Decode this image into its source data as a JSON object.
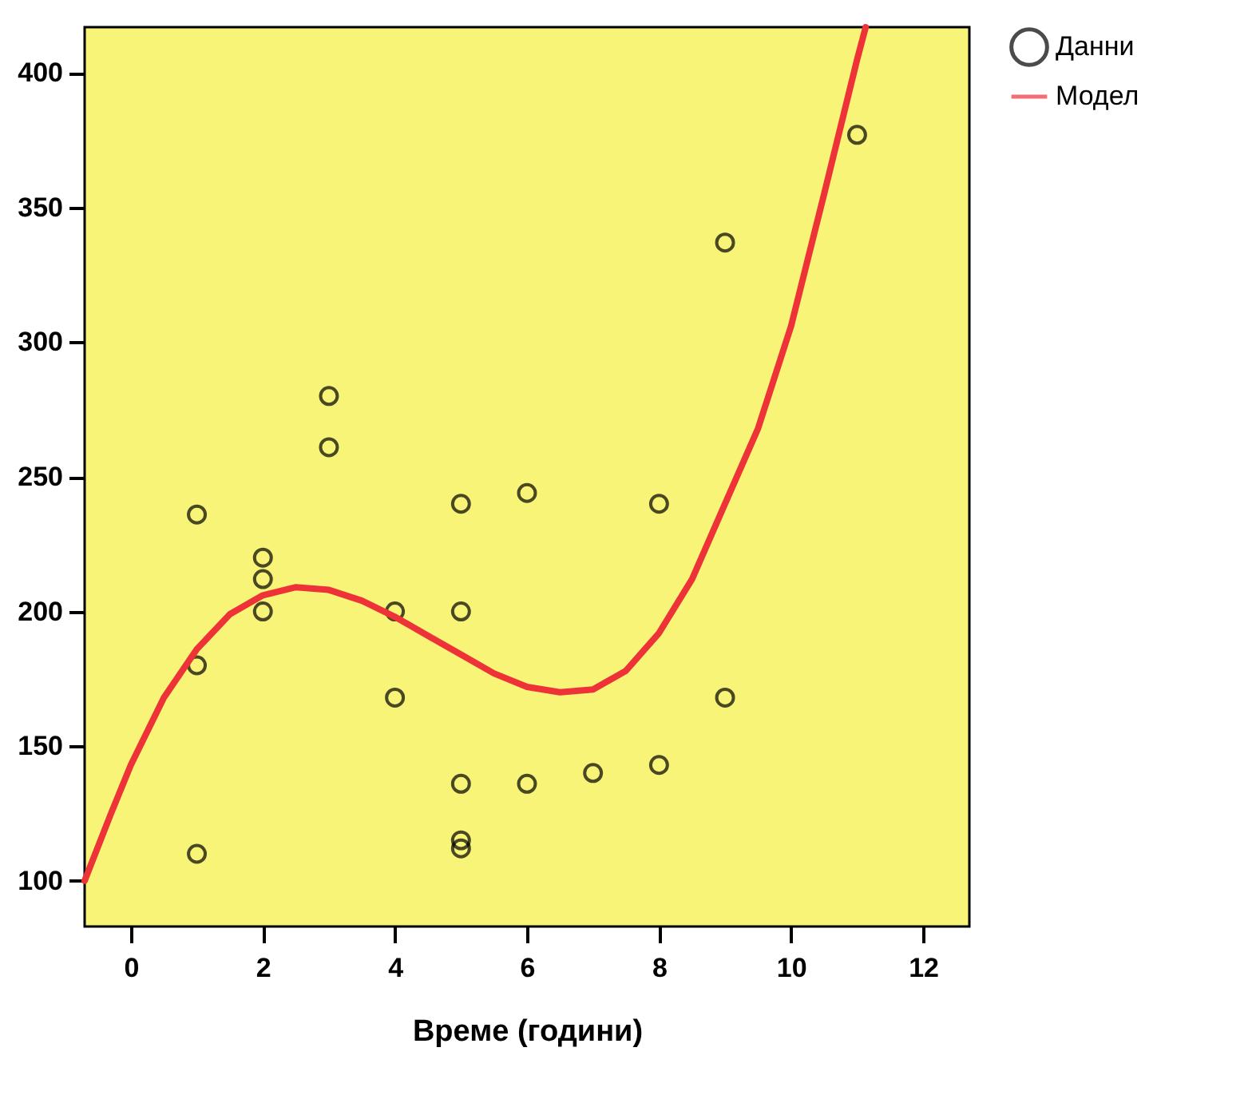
{
  "chart_data": {
    "type": "scatter",
    "xlabel": "Време (години)",
    "xlim": [
      -0.7,
      12.7
    ],
    "ylim": [
      83,
      417
    ],
    "xticks": [
      0,
      2,
      4,
      6,
      8,
      10,
      12
    ],
    "yticks": [
      100,
      150,
      200,
      250,
      300,
      350,
      400
    ],
    "grid": false,
    "legend": "top right",
    "series": [
      {
        "name": "Данни",
        "marker": "circle",
        "color": "#000000",
        "x": [
          1,
          1,
          1,
          2,
          2,
          2,
          3,
          3,
          4,
          4,
          5,
          5,
          5,
          5,
          5,
          6,
          6,
          7,
          8,
          8,
          9,
          9,
          11
        ],
        "values": [
          236,
          180,
          110,
          220,
          212,
          200,
          280,
          261,
          200,
          168,
          240,
          200,
          136,
          115,
          112,
          244,
          136,
          140,
          240,
          143,
          337,
          168,
          377
        ]
      },
      {
        "name": "Модел",
        "type": "line",
        "marker": "none",
        "line_style": "solid",
        "color": "#ee3338",
        "x": [
          -0.7,
          -0.3,
          0,
          0.5,
          1,
          1.5,
          2,
          2.5,
          3,
          3.5,
          4,
          4.5,
          5,
          5.5,
          6,
          6.5,
          7,
          7.5,
          8,
          8.5,
          9,
          9.5,
          10,
          10.5,
          11,
          11.13
        ],
        "values": [
          100,
          125,
          143,
          168,
          186,
          199,
          206,
          209,
          208,
          204,
          198,
          191,
          184,
          177,
          172,
          170,
          171,
          178,
          192,
          212,
          240,
          268,
          306,
          355,
          405,
          417
        ]
      }
    ]
  }
}
